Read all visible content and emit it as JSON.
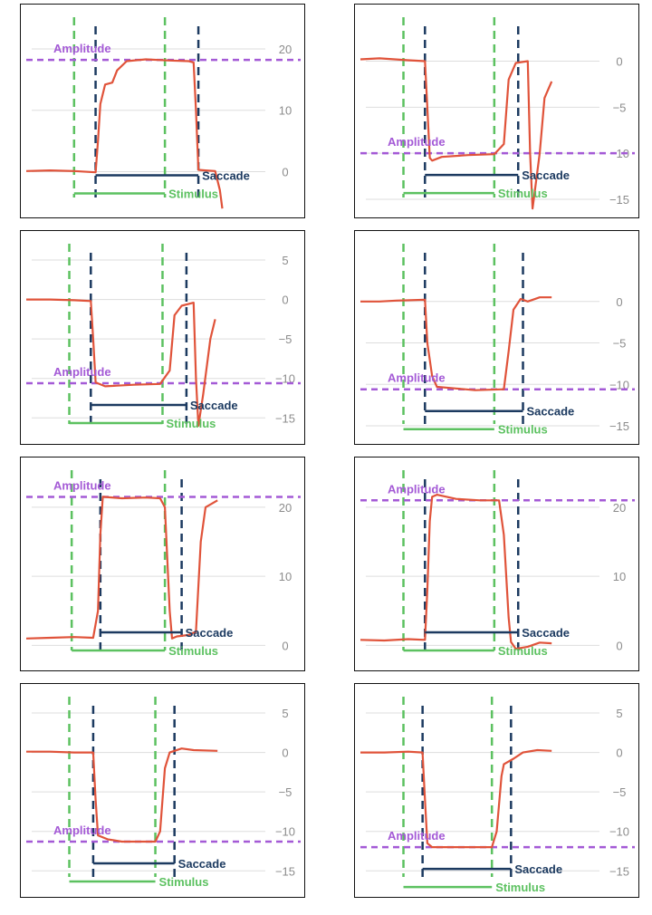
{
  "labels": {
    "amplitude": "Amplitude",
    "saccade": "Saccade",
    "stimulus": "Stimulus"
  },
  "colors": {
    "signal": "#e0533a",
    "amplitude": "#a45ad6",
    "saccade": "#1c3a60",
    "stimulus": "#5cc160",
    "grid": "#dddddd",
    "tick": "#8c8c8c"
  },
  "chart_data": [
    {
      "type": "line",
      "panel": "row-1-left",
      "y_ticks": [
        0,
        10,
        20
      ],
      "ylim": [
        -4.5,
        22.5
      ],
      "xlim": [
        0,
        100
      ],
      "amplitude": 18.2,
      "stimulus": {
        "onset": 20,
        "offset": 58
      },
      "saccade": {
        "onset": 29,
        "offset": 72
      },
      "trace": [
        [
          0,
          0.1
        ],
        [
          10,
          0.2
        ],
        [
          20,
          0.1
        ],
        [
          29,
          -0.1
        ],
        [
          30,
          5
        ],
        [
          31,
          11
        ],
        [
          33,
          14.2
        ],
        [
          36,
          14.5
        ],
        [
          38,
          16.5
        ],
        [
          42,
          18
        ],
        [
          50,
          18.3
        ],
        [
          60,
          18.1
        ],
        [
          68,
          18
        ],
        [
          70,
          17.8
        ],
        [
          71,
          10
        ],
        [
          72,
          0.3
        ],
        [
          75,
          0.2
        ],
        [
          79,
          0.1
        ],
        [
          81,
          -3
        ],
        [
          82,
          -6
        ]
      ]
    },
    {
      "type": "line",
      "panel": "row-1-right",
      "y_ticks": [
        0,
        -5,
        -10,
        -15
      ],
      "ylim": [
        -15,
        3
      ],
      "xlim": [
        0,
        100
      ],
      "amplitude": -10,
      "stimulus": {
        "onset": 18,
        "offset": 56
      },
      "saccade": {
        "onset": 27,
        "offset": 66
      },
      "trace": [
        [
          0,
          0.2
        ],
        [
          8,
          0.3
        ],
        [
          20,
          0.1
        ],
        [
          27,
          0
        ],
        [
          28,
          -5
        ],
        [
          29,
          -10.5
        ],
        [
          30,
          -10.8
        ],
        [
          34,
          -10.4
        ],
        [
          45,
          -10.2
        ],
        [
          56,
          -10.1
        ],
        [
          60,
          -9
        ],
        [
          62,
          -2
        ],
        [
          65,
          -0.2
        ],
        [
          70,
          0
        ],
        [
          71,
          -10
        ],
        [
          72,
          -16
        ],
        [
          75,
          -10
        ],
        [
          77,
          -4
        ],
        [
          80,
          -2.2
        ]
      ]
    },
    {
      "type": "line",
      "panel": "row-2-left",
      "y_ticks": [
        5,
        0,
        -5,
        -10,
        -15
      ],
      "ylim": [
        -16,
        5
      ],
      "xlim": [
        0,
        100
      ],
      "amplitude": -10.6,
      "stimulus": {
        "onset": 18,
        "offset": 57
      },
      "saccade": {
        "onset": 27,
        "offset": 67
      },
      "trace": [
        [
          0,
          0
        ],
        [
          10,
          0
        ],
        [
          20,
          -0.1
        ],
        [
          27,
          -0.2
        ],
        [
          28,
          -5
        ],
        [
          29,
          -10.5
        ],
        [
          33,
          -11
        ],
        [
          45,
          -10.8
        ],
        [
          56,
          -10.7
        ],
        [
          60,
          -9
        ],
        [
          62,
          -2
        ],
        [
          65,
          -0.8
        ],
        [
          70,
          -0.4
        ],
        [
          71,
          -10
        ],
        [
          72,
          -16
        ],
        [
          74,
          -12
        ],
        [
          77,
          -5
        ],
        [
          79,
          -2.5
        ]
      ]
    },
    {
      "type": "line",
      "panel": "row-2-right",
      "y_ticks": [
        0,
        -5,
        -10,
        -15
      ],
      "ylim": [
        -15,
        5
      ],
      "xlim": [
        0,
        100
      ],
      "amplitude": -10.6,
      "stimulus": {
        "onset": 18,
        "offset": 56
      },
      "saccade": {
        "onset": 27,
        "offset": 68
      },
      "trace": [
        [
          0,
          0
        ],
        [
          8,
          0
        ],
        [
          15,
          0.1
        ],
        [
          27,
          0.2
        ],
        [
          28,
          -5
        ],
        [
          30,
          -9
        ],
        [
          32,
          -10.3
        ],
        [
          40,
          -10.5
        ],
        [
          48,
          -10.7
        ],
        [
          60,
          -10.6
        ],
        [
          62,
          -6
        ],
        [
          64,
          -1
        ],
        [
          67,
          0.3
        ],
        [
          70,
          0
        ],
        [
          75,
          0.5
        ],
        [
          80,
          0.5
        ]
      ]
    },
    {
      "type": "line",
      "panel": "row-3-left",
      "y_ticks": [
        0,
        10,
        20
      ],
      "ylim": [
        -1,
        23
      ],
      "xlim": [
        0,
        100
      ],
      "amplitude": 21.5,
      "stimulus": {
        "onset": 19,
        "offset": 58
      },
      "saccade": {
        "onset": 31,
        "offset": 65
      },
      "trace": [
        [
          0,
          1
        ],
        [
          10,
          1.1
        ],
        [
          20,
          1.2
        ],
        [
          28,
          1.1
        ],
        [
          30,
          5
        ],
        [
          31,
          16
        ],
        [
          32,
          21.5
        ],
        [
          40,
          21.3
        ],
        [
          50,
          21.4
        ],
        [
          56,
          21.3
        ],
        [
          58,
          20
        ],
        [
          60,
          5
        ],
        [
          61,
          1
        ],
        [
          63,
          1.3
        ],
        [
          68,
          1.5
        ],
        [
          71,
          2
        ],
        [
          73,
          15
        ],
        [
          75,
          20
        ],
        [
          80,
          21
        ]
      ]
    },
    {
      "type": "line",
      "panel": "row-3-right",
      "y_ticks": [
        0,
        10,
        20
      ],
      "ylim": [
        -1,
        23
      ],
      "xlim": [
        0,
        100
      ],
      "amplitude": 21,
      "stimulus": {
        "onset": 18,
        "offset": 56
      },
      "saccade": {
        "onset": 27,
        "offset": 66
      },
      "trace": [
        [
          0,
          0.8
        ],
        [
          10,
          0.7
        ],
        [
          20,
          0.9
        ],
        [
          27,
          0.8
        ],
        [
          28,
          8
        ],
        [
          29,
          18
        ],
        [
          30,
          21.5
        ],
        [
          32,
          21.8
        ],
        [
          40,
          21.2
        ],
        [
          50,
          21
        ],
        [
          58,
          21
        ],
        [
          60,
          16
        ],
        [
          62,
          4
        ],
        [
          63,
          0.5
        ],
        [
          65,
          -0.5
        ],
        [
          70,
          -0.2
        ],
        [
          75,
          0.4
        ],
        [
          80,
          0.3
        ]
      ]
    },
    {
      "type": "line",
      "panel": "row-4-left",
      "y_ticks": [
        5,
        0,
        -5,
        -10,
        -15
      ],
      "ylim": [
        -16,
        5
      ],
      "xlim": [
        0,
        100
      ],
      "amplitude": -11.3,
      "stimulus": {
        "onset": 18,
        "offset": 54
      },
      "saccade": {
        "onset": 28,
        "offset": 62
      },
      "trace": [
        [
          0,
          0.1
        ],
        [
          10,
          0.1
        ],
        [
          20,
          0
        ],
        [
          28,
          0
        ],
        [
          29,
          -6
        ],
        [
          30,
          -10.5
        ],
        [
          34,
          -11
        ],
        [
          40,
          -11.3
        ],
        [
          54,
          -11.3
        ],
        [
          56,
          -10
        ],
        [
          58,
          -2
        ],
        [
          60,
          0
        ],
        [
          65,
          0.5
        ],
        [
          70,
          0.3
        ],
        [
          80,
          0.2
        ]
      ]
    },
    {
      "type": "line",
      "panel": "row-4-right",
      "y_ticks": [
        5,
        0,
        -5,
        -10,
        -15
      ],
      "ylim": [
        -16,
        5
      ],
      "xlim": [
        0,
        100
      ],
      "amplitude": -12,
      "stimulus": {
        "onset": 18,
        "offset": 55
      },
      "saccade": {
        "onset": 26,
        "offset": 63
      },
      "trace": [
        [
          0,
          0
        ],
        [
          10,
          0
        ],
        [
          20,
          0.1
        ],
        [
          26,
          0
        ],
        [
          27,
          -6
        ],
        [
          28,
          -11.5
        ],
        [
          30,
          -12
        ],
        [
          40,
          -12
        ],
        [
          55,
          -12
        ],
        [
          57,
          -10
        ],
        [
          59,
          -3
        ],
        [
          60,
          -1.5
        ],
        [
          64,
          -0.8
        ],
        [
          68,
          0
        ],
        [
          74,
          0.3
        ],
        [
          80,
          0.2
        ]
      ]
    }
  ]
}
